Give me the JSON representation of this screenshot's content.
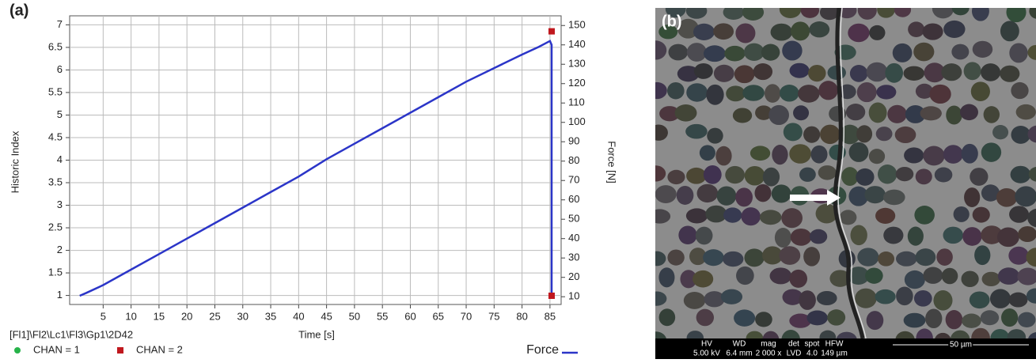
{
  "chart_data": {
    "type": "line",
    "panel_label": "(a)",
    "xlabel": "Time [s]",
    "ylabel": "Historic Index",
    "y2label": "Force [N]",
    "source": "[Fl1]\\Fl2\\Lc1\\Fl3\\Gp1\\2D42",
    "xlim": [
      -1,
      87
    ],
    "xticks": [
      5,
      10,
      15,
      20,
      25,
      30,
      35,
      40,
      45,
      50,
      55,
      60,
      65,
      70,
      75,
      80,
      85
    ],
    "ylim": [
      0.8,
      7.2
    ],
    "yticks": [
      1,
      1.5,
      2,
      2.5,
      3,
      3.5,
      4,
      4.5,
      5,
      5.5,
      6,
      6.5,
      7
    ],
    "y2lim": [
      6,
      155
    ],
    "y2ticks": [
      10,
      20,
      30,
      40,
      50,
      60,
      70,
      80,
      90,
      100,
      110,
      120,
      130,
      140,
      150
    ],
    "grid": true,
    "series": [
      {
        "name": "Force",
        "color": "#2b35c8",
        "axis": "y2",
        "x": [
          0.8,
          2,
          5,
          10,
          15,
          20,
          25,
          30,
          35,
          40,
          45,
          50,
          55,
          60,
          65,
          70,
          75,
          80,
          83,
          85,
          85.3,
          85.3
        ],
        "values": [
          10.5,
          12,
          16,
          24,
          32,
          40,
          48,
          56,
          64,
          72,
          81,
          89,
          97,
          105,
          113,
          121,
          128,
          135,
          139,
          142,
          140,
          12
        ]
      },
      {
        "name": "CHAN = 2",
        "color": "#c0181e",
        "axis": "y2",
        "marker": "square",
        "x": [
          85.3,
          85.3
        ],
        "values": [
          147,
          10.5
        ]
      }
    ],
    "legend": [
      {
        "name": "CHAN = 1",
        "color": "#27b34a",
        "marker": "circle"
      },
      {
        "name": "CHAN = 2",
        "color": "#c0181e",
        "marker": "square"
      }
    ]
  },
  "image_panel": {
    "label": "(b)",
    "info_headers": [
      "HV",
      "WD",
      "mag",
      "det",
      "spot",
      "HFW"
    ],
    "info_values": [
      "5.00 kV",
      "6.4 mm",
      "2 000 x",
      "LVD",
      "4.0",
      "149 µm"
    ],
    "scale_bar": "50 µm"
  }
}
